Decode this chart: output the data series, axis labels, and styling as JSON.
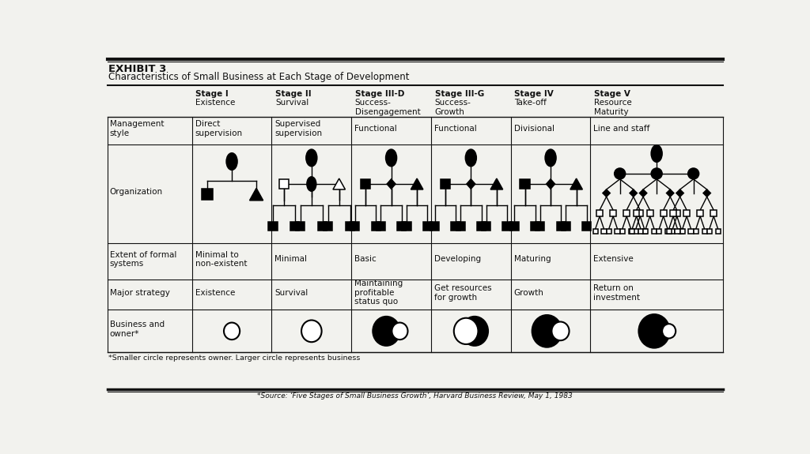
{
  "title_line1": "EXHIBIT 3",
  "title_line2": "Characteristics of Small Business at Each Stage of Development",
  "background_color": "#f2f2ee",
  "stages": [
    "Stage I",
    "Stage II",
    "Stage III-D",
    "Stage III-G",
    "Stage IV",
    "Stage V"
  ],
  "stage_subtitles": [
    "Existence",
    "Survival",
    "Success-\nDisengagement",
    "Success-\nGrowth",
    "Take-off",
    "Resource\nMaturity"
  ],
  "row_labels": [
    "Management\nstyle",
    "Organization",
    "Extent of formal\nsystems",
    "Major strategy",
    "Business and\nowner*"
  ],
  "mgmt_style": [
    "Direct\nsupervision",
    "Supervised\nsupervision",
    "Functional",
    "Functional",
    "Divisional",
    "Line and staff"
  ],
  "formal_systems": [
    "Minimal to\nnon-existent",
    "Minimal",
    "Basic",
    "Developing",
    "Maturing",
    "Extensive"
  ],
  "major_strategy": [
    "Existence",
    "Survival",
    "Maintaining\nprofitable\nstatus quo",
    "Get resources\nfor growth",
    "Growth",
    "Return on\ninvestment"
  ],
  "footnote": "*Smaller circle represents owner. Larger circle represents business",
  "source": "*Source: ‘Five Stages of Small Business Growth’, Harvard Business Review, May 1, 1983"
}
